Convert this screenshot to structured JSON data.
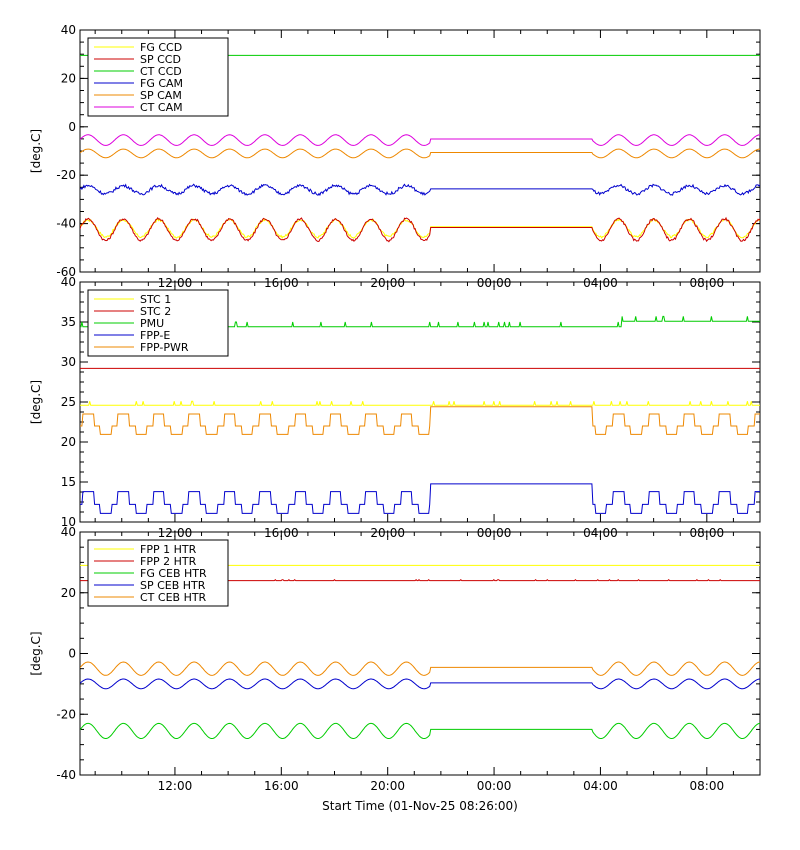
{
  "xlabel": "Start Time (01-Nov-25 08:26:00)",
  "x_tick_labels": [
    "12:00",
    "16:00",
    "20:00",
    "00:00",
    "04:00",
    "08:00"
  ],
  "chart_data": [
    {
      "type": "line",
      "ylabel": "[deg.C]",
      "ylim": [
        -60,
        40
      ],
      "yticks": [
        40,
        20,
        0,
        -20,
        -40,
        -60
      ],
      "xrange_hours": [
        8.43,
        34.0
      ],
      "legend_position": "top-left",
      "series": [
        {
          "name": "FG CCD",
          "color": "#ffff00",
          "kind": "flat_wave",
          "base": -42.0,
          "amp": 3.5,
          "period": 1.33,
          "extra": "temp"
        },
        {
          "name": "SP CCD",
          "color": "#cc0000",
          "kind": "flat_wave",
          "base": -42.5,
          "amp": 4.5,
          "period": 1.33,
          "extra": "temp2"
        },
        {
          "name": "CT CCD",
          "color": "#00cc00",
          "kind": "const",
          "base": 29.5
        },
        {
          "name": "FG CAM",
          "color": "#0000cc",
          "kind": "flat_wave",
          "base": -26.0,
          "amp": 1.7,
          "period": 1.33,
          "extra": "noise"
        },
        {
          "name": "SP CAM",
          "color": "#ee8800",
          "kind": "flat_wave",
          "base": -11.0,
          "amp": 1.8,
          "period": 1.33
        },
        {
          "name": "CT CAM",
          "color": "#dd00dd",
          "kind": "flat_wave",
          "base": -5.5,
          "amp": 2.2,
          "period": 1.33
        }
      ]
    },
    {
      "type": "line",
      "ylabel": "[deg.C]",
      "ylim": [
        10,
        40
      ],
      "yticks": [
        40,
        35,
        30,
        25,
        20,
        15,
        10
      ],
      "xrange_hours": [
        8.43,
        34.0
      ],
      "legend_position": "top-left",
      "series": [
        {
          "name": "STC 1",
          "color": "#ffff00",
          "kind": "const_noise",
          "base": 24.6,
          "amp": 0.5
        },
        {
          "name": "STC 2",
          "color": "#cc0000",
          "kind": "const",
          "base": 29.2
        },
        {
          "name": "PMU",
          "color": "#00cc00",
          "kind": "pmu",
          "base": 34.4
        },
        {
          "name": "FPP-E",
          "color": "#0000cc",
          "kind": "step",
          "base": 12.2,
          "amp": 1.6,
          "period": 1.33
        },
        {
          "name": "FPP-PWR",
          "color": "#ee8800",
          "kind": "step",
          "base": 22.0,
          "amp": 1.5,
          "period": 1.33
        }
      ]
    },
    {
      "type": "line",
      "ylabel": "[deg.C]",
      "ylim": [
        -40,
        40
      ],
      "yticks": [
        40,
        20,
        0,
        -20,
        -40
      ],
      "xrange_hours": [
        8.43,
        34.0
      ],
      "legend_position": "top-left",
      "series": [
        {
          "name": "FPP 1 HTR",
          "color": "#ffff00",
          "kind": "const",
          "base": 29.0
        },
        {
          "name": "FPP 2 HTR",
          "color": "#cc0000",
          "kind": "const_noise",
          "base": 24.0,
          "amp": 0.3
        },
        {
          "name": "FG CEB HTR",
          "color": "#00cc00",
          "kind": "flat_wave",
          "base": -25.5,
          "amp": 2.5,
          "period": 1.33
        },
        {
          "name": "SP CEB HTR",
          "color": "#0000cc",
          "kind": "flat_wave",
          "base": -10.0,
          "amp": 1.6,
          "period": 1.33
        },
        {
          "name": "CT CEB HTR",
          "color": "#ee8800",
          "kind": "flat_wave",
          "base": -5.0,
          "amp": 2.2,
          "period": 1.33
        }
      ]
    }
  ]
}
